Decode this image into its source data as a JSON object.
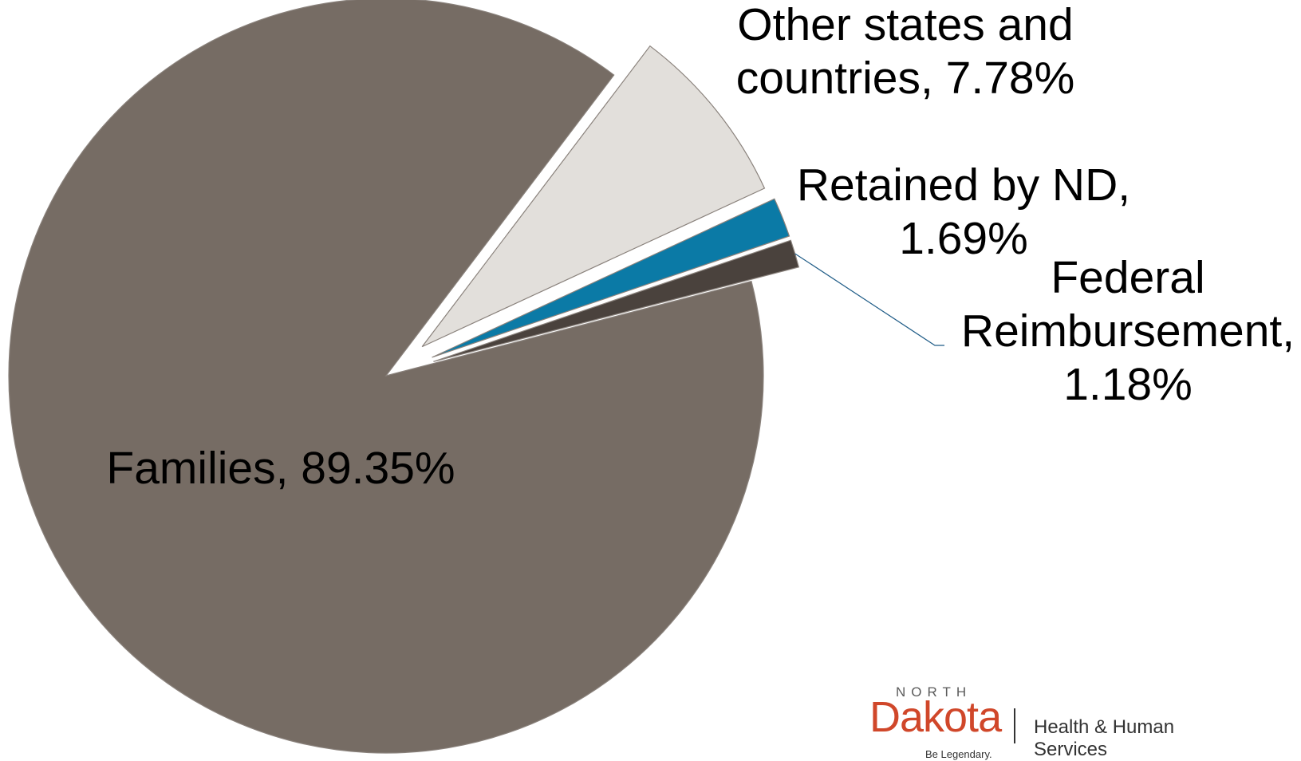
{
  "chart_data": {
    "type": "pie",
    "title": "",
    "slices": [
      {
        "label": "Families",
        "value": 89.35,
        "display": "Families, 89.35%",
        "color": "#766c64",
        "exploded": false
      },
      {
        "label": "Other states and countries",
        "value": 7.78,
        "display": "Other states and countries, 7.78%",
        "color": "#e2dfdb",
        "exploded": true
      },
      {
        "label": "Retained by ND",
        "value": 1.69,
        "display": "Retained by ND, 1.69%",
        "color": "#0b7aa6",
        "exploded": true
      },
      {
        "label": "Federal Reimbursement",
        "value": 1.18,
        "display": "Federal Reimbursement, 1.18%",
        "color": "#4a423d",
        "exploded": true
      }
    ],
    "data_labels": [
      {
        "lines": [
          "Families, 89.35%"
        ]
      },
      {
        "lines": [
          "Other states and",
          "countries, 7.78%"
        ]
      },
      {
        "lines": [
          "Retained by ND,",
          "1.69%"
        ]
      },
      {
        "lines": [
          "Federal",
          "Reimbursement,",
          "1.18%"
        ]
      }
    ],
    "legend": "none"
  },
  "logo": {
    "north": "NORTH",
    "dakota": "Dakota",
    "department": "Health & Human Services",
    "tagline": "Be Legendary."
  }
}
